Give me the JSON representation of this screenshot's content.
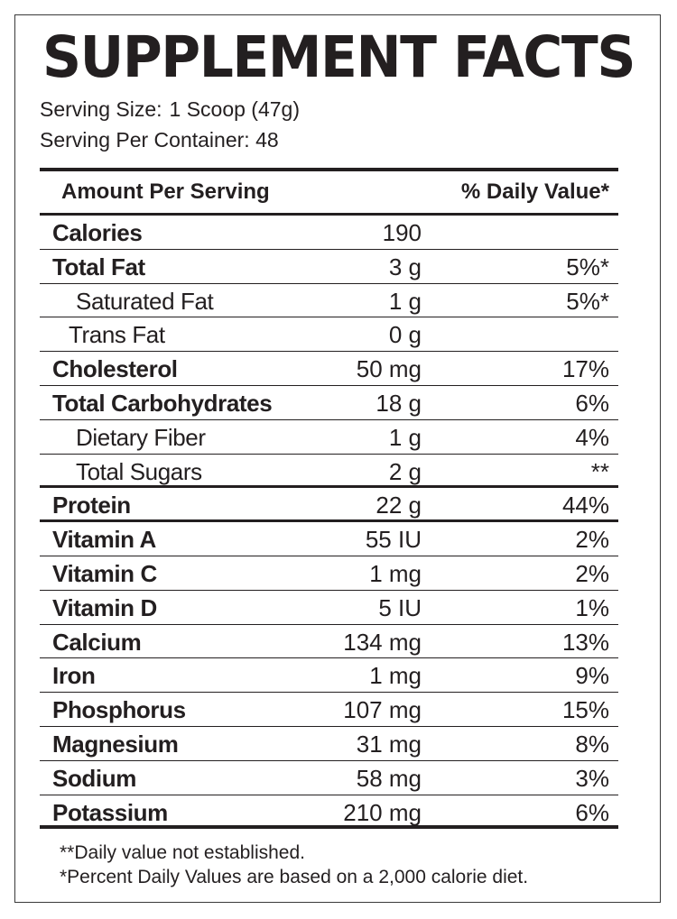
{
  "title": "SUPPLEMENT FACTS",
  "serving": {
    "size_label": "Serving Size:",
    "size_value": "1 Scoop (47g)",
    "container_label": "Serving Per Container:",
    "container_value": "48"
  },
  "header": {
    "amount_label": "Amount Per Serving",
    "dv_label": "% Daily Value*"
  },
  "nutrients": [
    {
      "name": "Calories",
      "amount": "190",
      "dv": ""
    },
    {
      "name": "Total Fat",
      "amount": "3 g",
      "dv": "5%*"
    },
    {
      "name": "Saturated Fat",
      "amount": "1 g",
      "dv": "5%*"
    },
    {
      "name": "Trans Fat",
      "amount": "0 g",
      "dv": ""
    },
    {
      "name": "Cholesterol",
      "amount": "50 mg",
      "dv": "17%"
    },
    {
      "name": "Total Carbohydrates",
      "amount": "18 g",
      "dv": "6%"
    },
    {
      "name": "Dietary Fiber",
      "amount": "1 g",
      "dv": "4%"
    },
    {
      "name": "Total Sugars",
      "amount": "2 g",
      "dv": "**"
    },
    {
      "name": "Protein",
      "amount": "22 g",
      "dv": "44%"
    },
    {
      "name": "Vitamin A",
      "amount": "55 IU",
      "dv": "2%"
    },
    {
      "name": "Vitamin C",
      "amount": "1 mg",
      "dv": "2%"
    },
    {
      "name": "Vitamin D",
      "amount": "5 IU",
      "dv": "1%"
    },
    {
      "name": "Calcium",
      "amount": "134 mg",
      "dv": "13%"
    },
    {
      "name": "Iron",
      "amount": "1 mg",
      "dv": "9%"
    },
    {
      "name": "Phosphorus",
      "amount": "107 mg",
      "dv": "15%"
    },
    {
      "name": "Magnesium",
      "amount": "31 mg",
      "dv": "8%"
    },
    {
      "name": "Sodium",
      "amount": "58 mg",
      "dv": "3%"
    },
    {
      "name": "Potassium",
      "amount": "210 mg",
      "dv": "6%"
    }
  ],
  "footnotes": {
    "not_established": "**Daily value not established.",
    "percent_basis": "*Percent Daily Values are based on a 2,000 calorie diet."
  }
}
